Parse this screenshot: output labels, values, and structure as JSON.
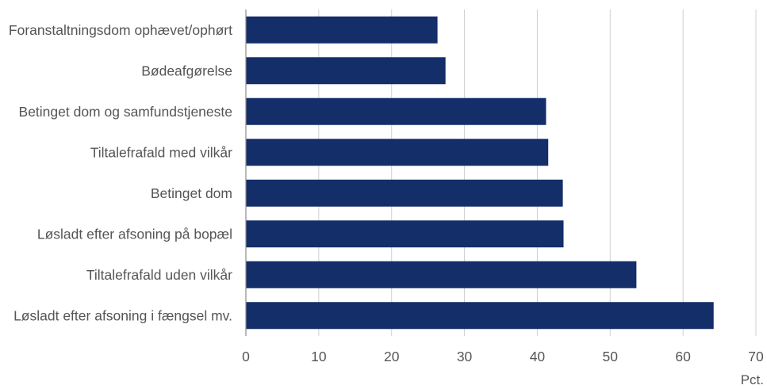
{
  "colors": {
    "bar": "#132e69",
    "grid": "#d0d0d0",
    "axis": "#8c8c8c",
    "text": "#555555"
  },
  "chart_data": {
    "type": "bar",
    "orientation": "horizontal",
    "categories": [
      "Foranstaltningsdom ophævet/ophørt",
      "Bødeafgørelse",
      "Betinget dom og samfundstjeneste",
      "Tiltalefrafald med vilkår",
      "Betinget dom",
      "Løsladt efter afsoning på bopæl",
      "Tiltalefrafald uden vilkår",
      "Løsladt efter afsoning i fængsel mv."
    ],
    "values": [
      26.3,
      27.4,
      41.2,
      41.5,
      43.5,
      43.6,
      53.6,
      64.2
    ],
    "xlim": [
      0,
      70
    ],
    "xticks": [
      0,
      10,
      20,
      30,
      40,
      50,
      60,
      70
    ],
    "unit_label": "Pct.",
    "grid": "vertical"
  }
}
